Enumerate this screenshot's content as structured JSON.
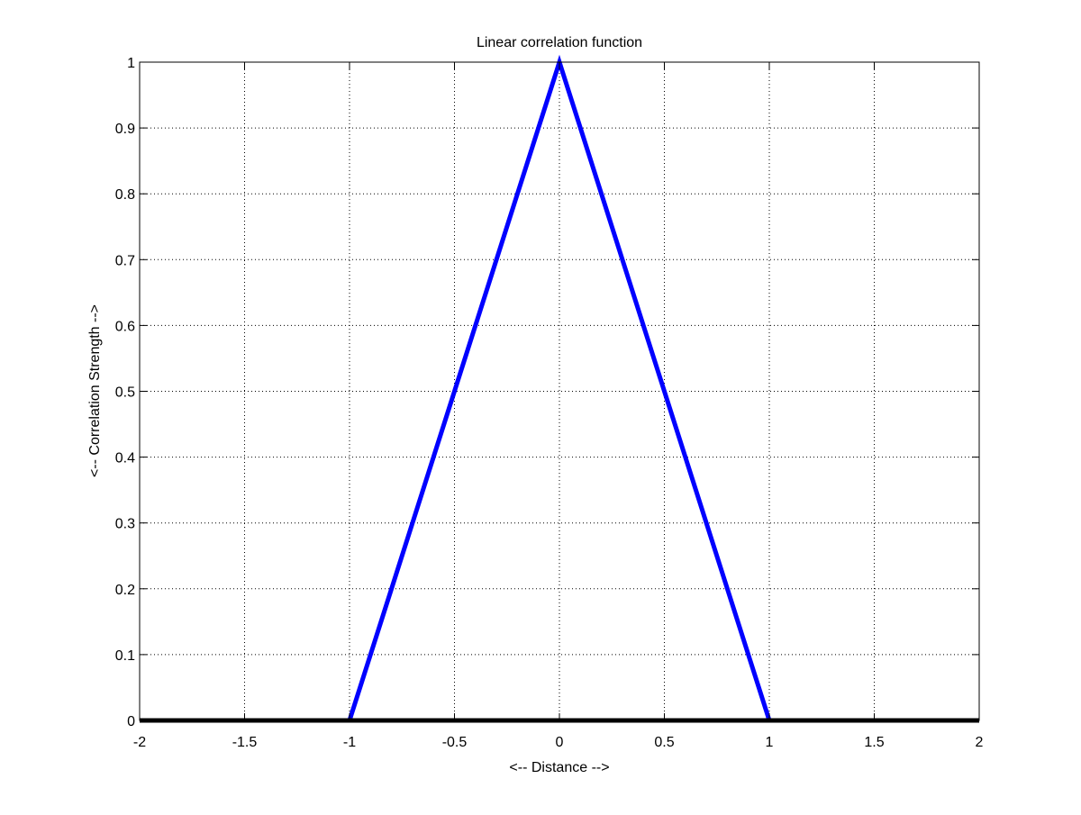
{
  "chart_data": {
    "type": "line",
    "title": "Linear correlation function",
    "xlabel": "<-- Distance -->",
    "ylabel": "<-- Correlation Strength -->",
    "xlim": [
      -2,
      2
    ],
    "ylim": [
      0,
      1
    ],
    "xticks": [
      "-2",
      "-1.5",
      "-1",
      "-0.5",
      "0",
      "0.5",
      "1",
      "1.5",
      "2"
    ],
    "yticks": [
      "0",
      "0.1",
      "0.2",
      "0.3",
      "0.4",
      "0.5",
      "0.6",
      "0.7",
      "0.8",
      "0.9",
      "1"
    ],
    "grid": true,
    "series": [
      {
        "color": "#0000ff",
        "points": [
          [
            -1,
            0
          ],
          [
            0,
            1
          ],
          [
            1,
            0
          ]
        ]
      },
      {
        "color": "#000000",
        "points": [
          [
            -2,
            0
          ],
          [
            2,
            0
          ]
        ]
      }
    ]
  }
}
